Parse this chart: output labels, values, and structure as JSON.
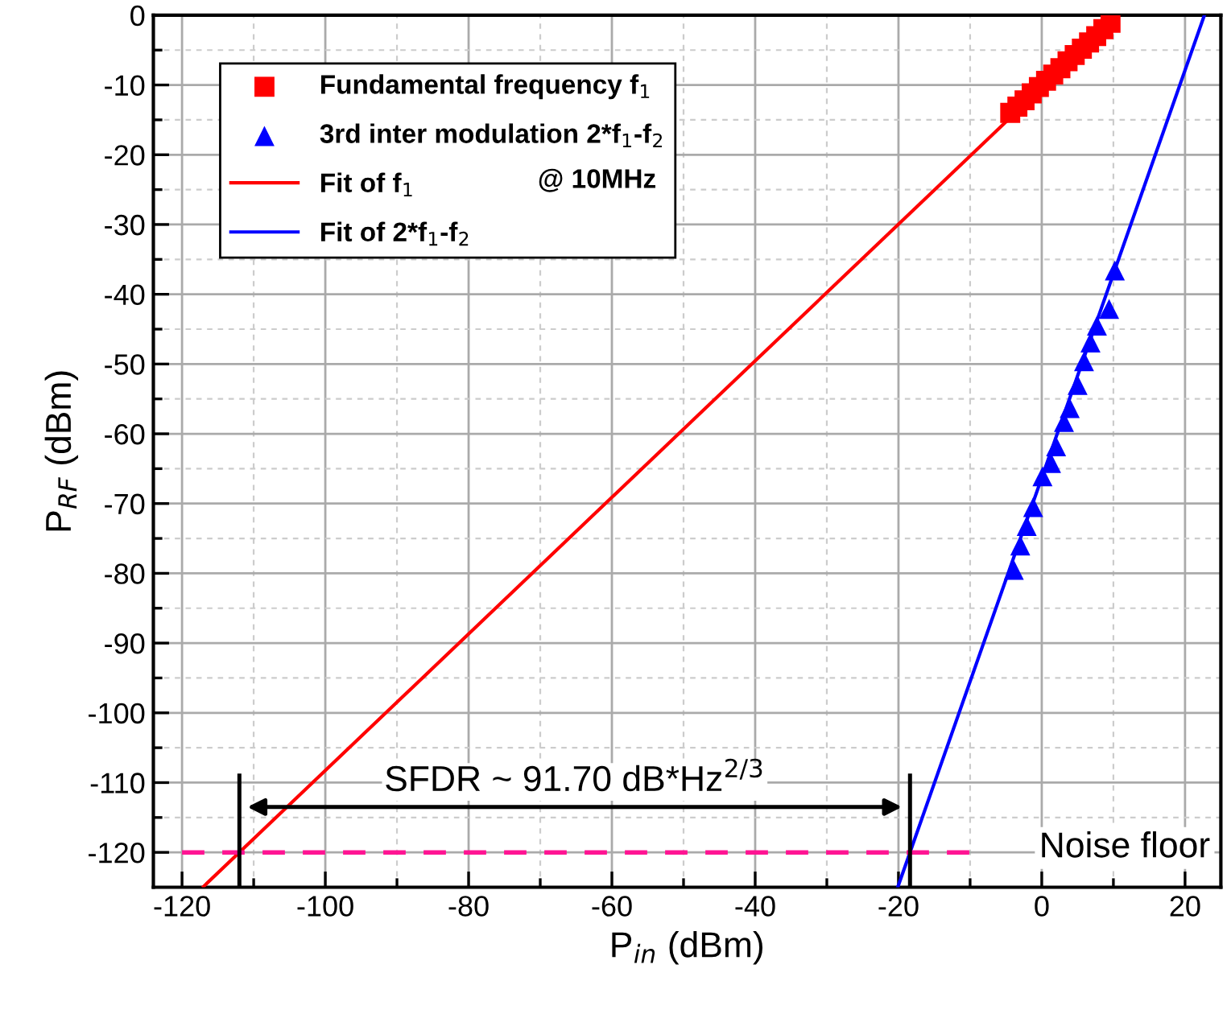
{
  "chart_data": {
    "type": "scatter",
    "xlabel": "P$_{in}$ (dBm)",
    "ylabel": "P$_{RF}$ (dBm)",
    "xlim": [
      -124,
      25
    ],
    "ylim": [
      -125,
      0
    ],
    "xticks": [
      -120,
      {
        "value": -110,
        "label": null
      },
      -100,
      {
        "value": -90,
        "label": null
      },
      -80,
      {
        "value": -70,
        "label": null
      },
      -60,
      {
        "value": -50,
        "label": null
      },
      -40,
      {
        "value": -30,
        "label": null
      },
      -20,
      {
        "value": -10,
        "label": null
      },
      0,
      {
        "value": 10,
        "label": null
      },
      20
    ],
    "yticks": [
      0,
      {
        "value": -5,
        "label": null
      },
      -10,
      {
        "value": -15,
        "label": null
      },
      -20,
      {
        "value": -25,
        "label": null
      },
      -30,
      {
        "value": -35,
        "label": null
      },
      -40,
      {
        "value": -45,
        "label": null
      },
      -50,
      {
        "value": -55,
        "label": null
      },
      -60,
      {
        "value": -65,
        "label": null
      },
      -70,
      {
        "value": -75,
        "label": null
      },
      -80,
      {
        "value": -85,
        "label": null
      },
      -90,
      {
        "value": -95,
        "label": null
      },
      -100,
      {
        "value": -105,
        "label": null
      },
      -110,
      {
        "value": -115,
        "label": null
      },
      -120
    ],
    "grid": true,
    "legend": "top left",
    "series": [
      {
        "name": "Fundamental frequency f$_{1}$",
        "marker": "square",
        "color": "#ff0000",
        "x": [
          -4.4,
          -3.4,
          -2.4,
          -1.4,
          -0.4,
          0.6,
          1.6,
          2.6,
          3.6,
          4.6,
          5.6,
          6.6,
          7.6,
          8.6,
          9.6
        ],
        "values": [
          -14,
          -13.1,
          -12.2,
          -11.2,
          -10.3,
          -9.4,
          -8.5,
          -7.6,
          -6.6,
          -5.7,
          -4.8,
          -3.9,
          -3.0,
          -2.0,
          -1.1
        ]
      },
      {
        "name": "3rd inter modulation 2*f$_{1}$-f$_{2}$",
        "marker": "triangle",
        "color": "#0000ff",
        "x": [
          -3.9,
          -3.0,
          -2.1,
          -1.2,
          0.1,
          1.3,
          2.0,
          3.1,
          3.9,
          5.0,
          5.9,
          6.8,
          7.7,
          9.4,
          10.2
        ],
        "values": [
          -79.5,
          -76.0,
          -73.2,
          -70.5,
          -66.1,
          -64.2,
          -61.8,
          -58.3,
          -56.3,
          -53.0,
          -49.6,
          -46.9,
          -44.5,
          -42.1,
          -36.6
        ]
      },
      {
        "name": "Fit of f$_{1}$",
        "type": "line",
        "line_style": "solid",
        "color": "#ff0000",
        "x": [
          -117,
          10
        ],
        "values": [
          -124.9,
          -0.6
        ]
      },
      {
        "name": "Fit of 2*f$_{1}$-f$_{2}$",
        "type": "line",
        "line_style": "solid",
        "color": "#0000ff",
        "x": [
          -20.1,
          22.7
        ],
        "values": [
          -125,
          0
        ]
      },
      {
        "type": "line",
        "line_style": "dashed",
        "color": "#ff1493",
        "x": [
          -120,
          -10
        ],
        "values": [
          -120,
          -120
        ]
      }
    ],
    "annotations": [
      "@ 10MHz",
      "SFDR ~ 91.70 dB*Hz$^{2/3}$",
      "Noise floor"
    ]
  }
}
